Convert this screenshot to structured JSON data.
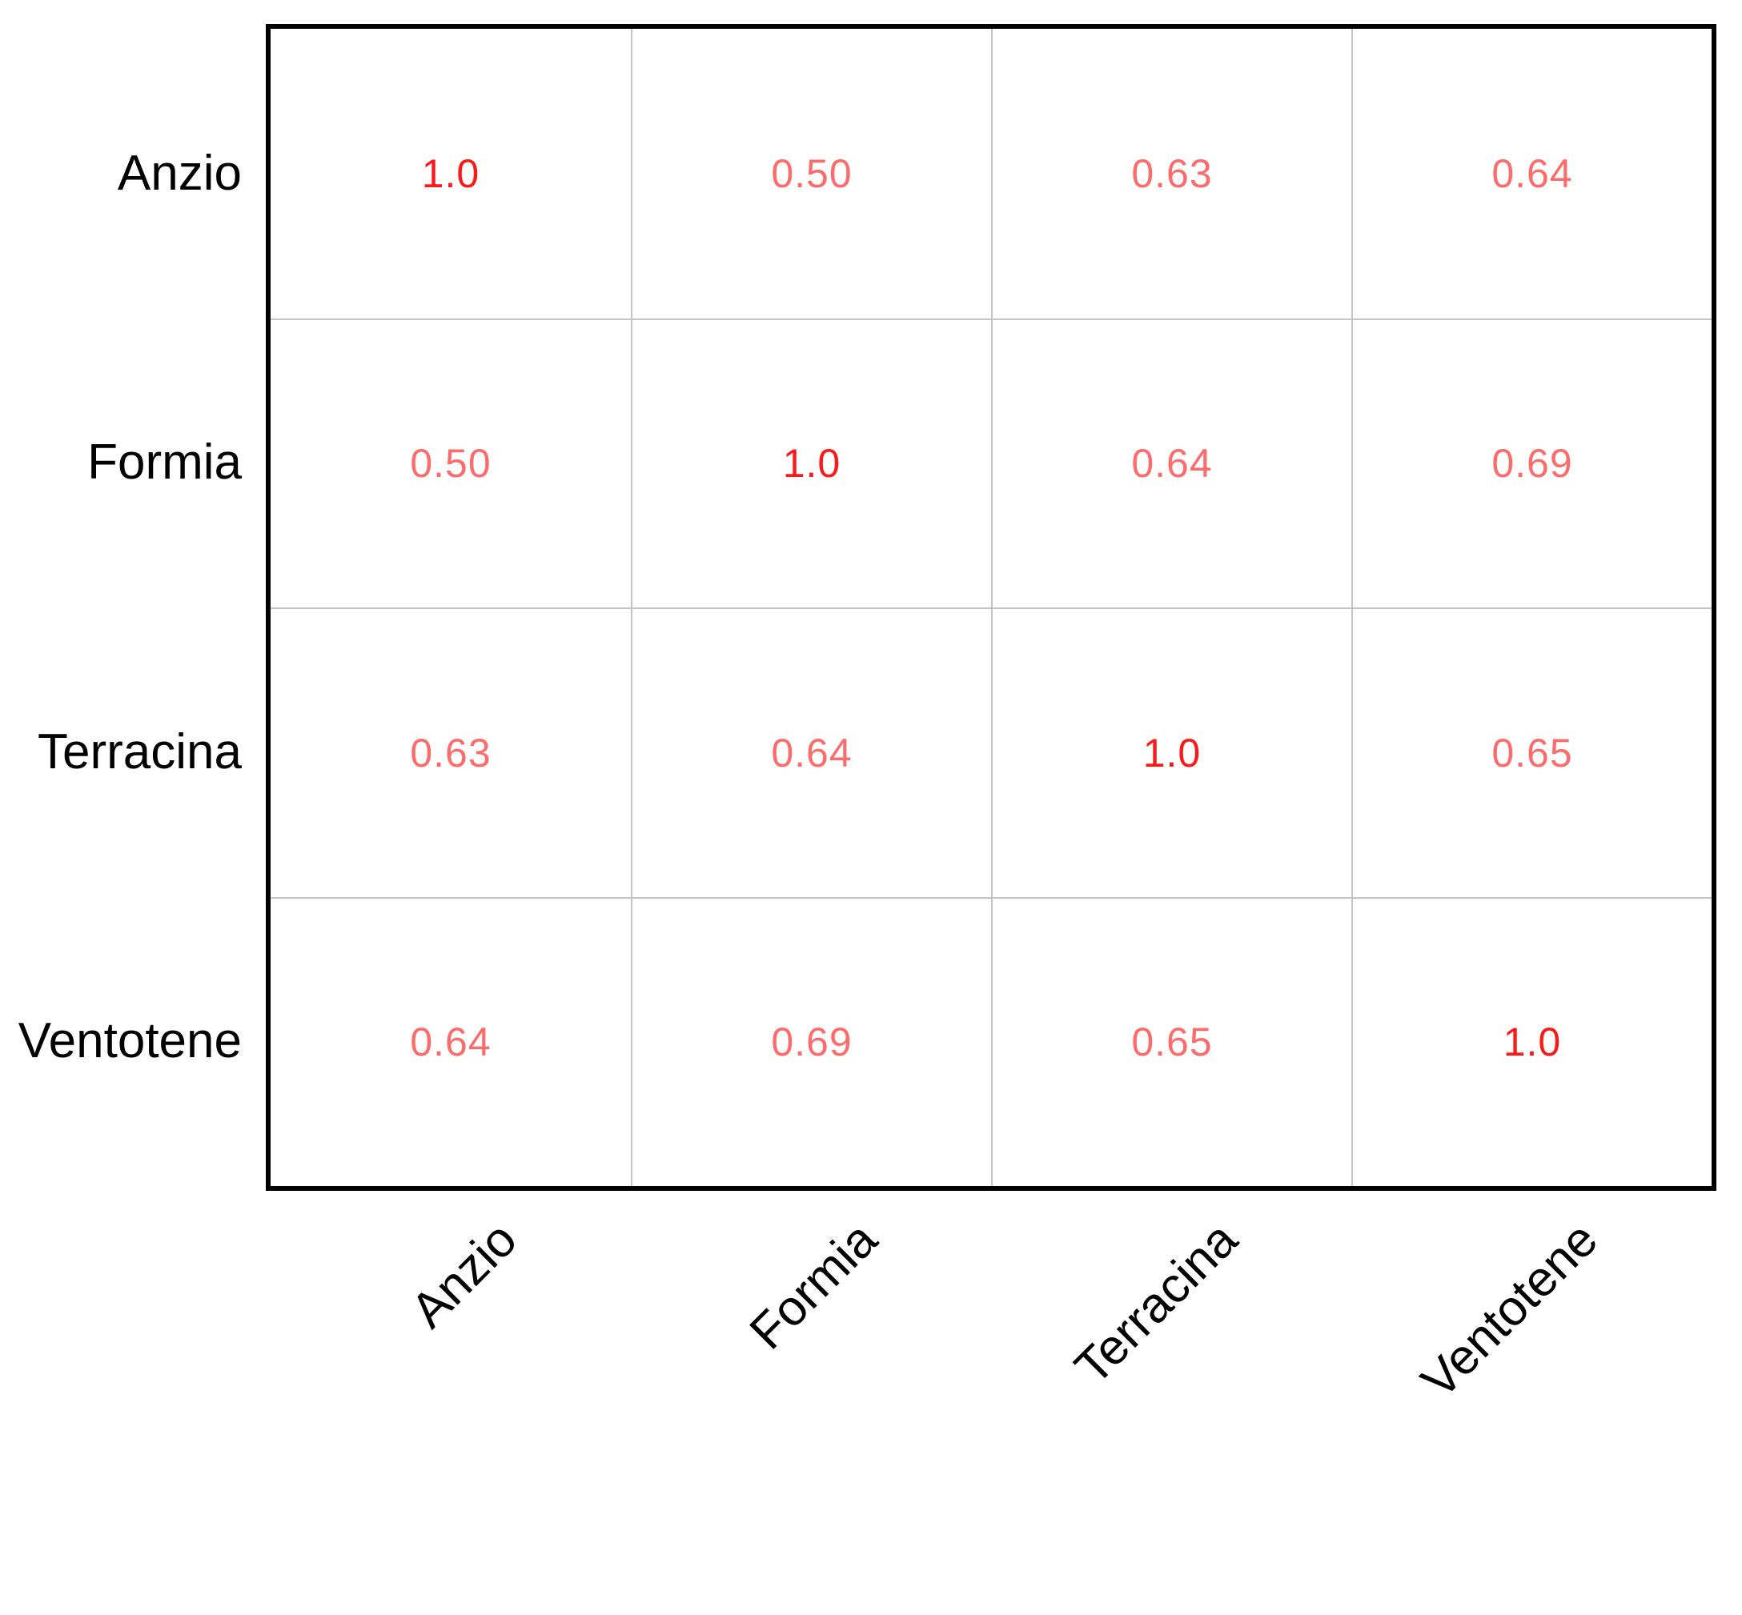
{
  "chart_data": {
    "type": "heatmap",
    "title": "",
    "xlabel": "",
    "ylabel": "",
    "rows": [
      "Anzio",
      "Formia",
      "Terracina",
      "Ventotene"
    ],
    "columns": [
      "Anzio",
      "Formia",
      "Terracina",
      "Ventotene"
    ],
    "values": [
      [
        1.0,
        0.5,
        0.63,
        0.64
      ],
      [
        0.5,
        1.0,
        0.64,
        0.69
      ],
      [
        0.63,
        0.64,
        1.0,
        0.65
      ],
      [
        0.64,
        0.69,
        0.65,
        1.0
      ]
    ],
    "value_labels": [
      [
        "1.0",
        "0.50",
        "0.63",
        "0.64"
      ],
      [
        "0.50",
        "1.0",
        "0.64",
        "0.69"
      ],
      [
        "0.63",
        "0.64",
        "1.0",
        "0.65"
      ],
      [
        "0.64",
        "0.69",
        "0.65",
        "1.0"
      ]
    ],
    "grid_on": true,
    "legend_position": "none",
    "x_tick_rotation_deg": 45,
    "cell_background": "#ffffff"
  },
  "colors": {
    "diagonal_value_text": "#fa1a1a",
    "off_diagonal_value_text": "#fb6d6d",
    "grid_line": "#c4c4c4",
    "axis_border": "#000000",
    "tick_label_text": "#000000",
    "background": "#ffffff"
  }
}
